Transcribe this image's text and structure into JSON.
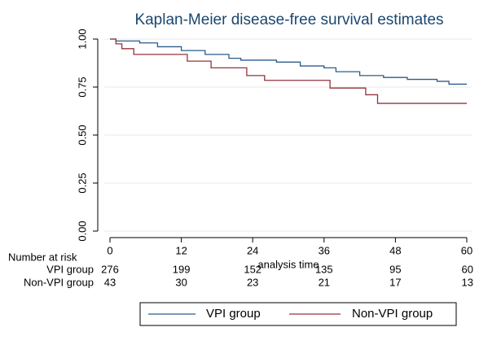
{
  "chart_data": {
    "type": "line",
    "title": "Kaplan-Meier disease-free survival estimates",
    "x_label": "analysis time",
    "xlim": [
      0,
      60
    ],
    "xticks": [
      0,
      12,
      24,
      36,
      48,
      60
    ],
    "ylim": [
      0,
      1
    ],
    "yticks": [
      {
        "value": 0,
        "label": "0.00"
      },
      {
        "value": 0.25,
        "label": "0.25"
      },
      {
        "value": 0.5,
        "label": "0.50"
      },
      {
        "value": 0.75,
        "label": "0.75"
      },
      {
        "value": 1,
        "label": "1.00"
      }
    ],
    "grid": true,
    "series": [
      {
        "name": "VPI group",
        "color": "#2b5b8a",
        "x": [
          0,
          1,
          1,
          5,
          5,
          8,
          8,
          12,
          12,
          16,
          16,
          20,
          20,
          22,
          22,
          28,
          28,
          32,
          32,
          36,
          36,
          38,
          38,
          42,
          42,
          46,
          46,
          50,
          50,
          55,
          55,
          57,
          57,
          60
        ],
        "values": [
          1,
          1,
          0.99,
          0.99,
          0.98,
          0.98,
          0.96,
          0.96,
          0.94,
          0.94,
          0.92,
          0.92,
          0.9,
          0.9,
          0.89,
          0.89,
          0.88,
          0.88,
          0.86,
          0.86,
          0.85,
          0.85,
          0.83,
          0.83,
          0.81,
          0.81,
          0.8,
          0.8,
          0.79,
          0.79,
          0.78,
          0.78,
          0.765,
          0.765
        ]
      },
      {
        "name": "Non-VPI group",
        "color": "#93343c",
        "x": [
          0,
          1,
          1,
          2,
          2,
          4,
          4,
          13,
          13,
          17,
          17,
          23,
          23,
          26,
          26,
          37,
          37,
          43,
          43,
          45,
          45,
          60
        ],
        "values": [
          1,
          1,
          0.975,
          0.975,
          0.95,
          0.95,
          0.92,
          0.92,
          0.885,
          0.885,
          0.85,
          0.85,
          0.81,
          0.81,
          0.785,
          0.785,
          0.745,
          0.745,
          0.71,
          0.71,
          0.665,
          0.665
        ]
      }
    ],
    "risk_table": {
      "title": "Number at risk",
      "rows": [
        {
          "name": "VPI group",
          "values": [
            276,
            199,
            152,
            135,
            95,
            60
          ]
        },
        {
          "name": "Non-VPI group",
          "values": [
            43,
            30,
            23,
            21,
            17,
            13
          ]
        }
      ]
    }
  }
}
